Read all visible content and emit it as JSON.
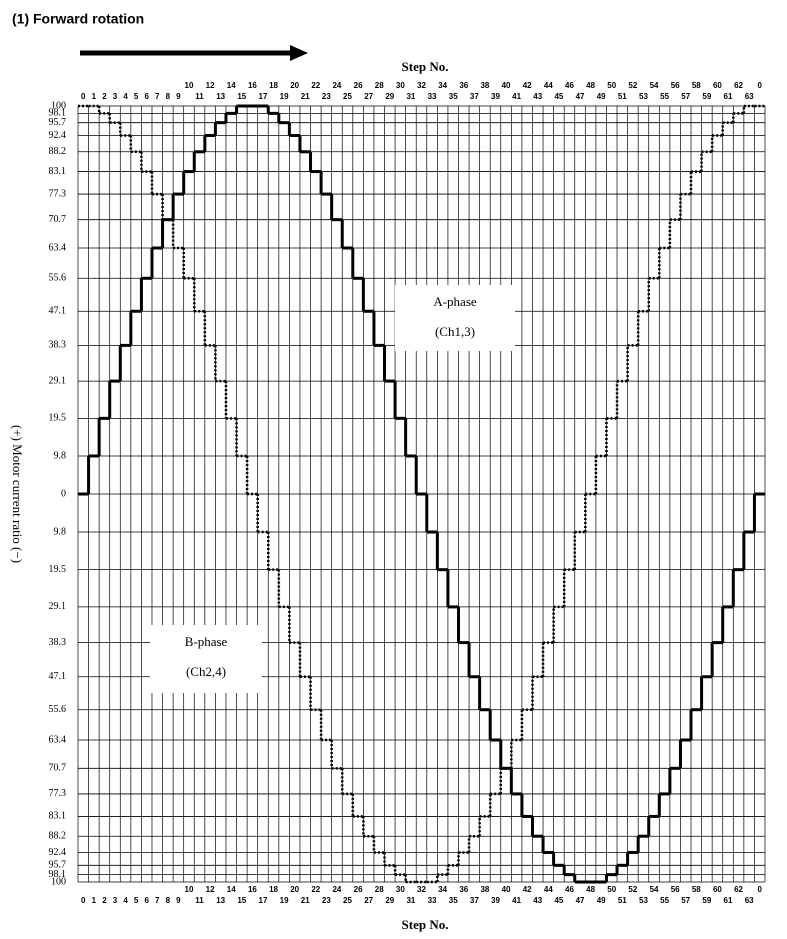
{
  "chart_data": {
    "type": "step",
    "title": "(1) Forward rotation",
    "xlabel": "Step No.",
    "ylabel": "(+) Motor current ratio (−)",
    "categories": [
      "0",
      "1",
      "2",
      "3",
      "4",
      "5",
      "6",
      "7",
      "8",
      "9",
      "10",
      "11",
      "12",
      "13",
      "14",
      "15",
      "16",
      "17",
      "18",
      "19",
      "20",
      "21",
      "22",
      "23",
      "24",
      "25",
      "26",
      "27",
      "28",
      "29",
      "30",
      "31",
      "32",
      "33",
      "34",
      "35",
      "36",
      "37",
      "38",
      "39",
      "40",
      "41",
      "42",
      "43",
      "44",
      "45",
      "46",
      "47",
      "48",
      "49",
      "50",
      "51",
      "52",
      "53",
      "54",
      "55",
      "56",
      "57",
      "58",
      "59",
      "60",
      "61",
      "62",
      "63",
      "0"
    ],
    "series": [
      {
        "name": "A-phase",
        "sub": "(Ch1,3)",
        "color": "#000000",
        "style": "solid",
        "values": [
          0,
          9.8,
          19.5,
          29.1,
          38.3,
          47.1,
          55.6,
          63.4,
          70.7,
          77.3,
          83.1,
          88.2,
          92.4,
          95.7,
          98.1,
          100,
          100,
          100,
          98.1,
          95.7,
          92.4,
          88.2,
          83.1,
          77.3,
          70.7,
          63.4,
          55.6,
          47.1,
          38.3,
          29.1,
          19.5,
          9.8,
          0,
          -9.8,
          -19.5,
          -29.1,
          -38.3,
          -47.1,
          -55.6,
          -63.4,
          -70.7,
          -77.3,
          -83.1,
          -88.2,
          -92.4,
          -95.7,
          -98.1,
          -100,
          -100,
          -100,
          -98.1,
          -95.7,
          -92.4,
          -88.2,
          -83.1,
          -77.3,
          -70.7,
          -63.4,
          -55.6,
          -47.1,
          -38.3,
          -29.1,
          -19.5,
          -9.8,
          0
        ]
      },
      {
        "name": "B-phase",
        "sub": "(Ch2,4)",
        "color": "#000000",
        "style": "dotted",
        "values": [
          100,
          100,
          98.1,
          95.7,
          92.4,
          88.2,
          83.1,
          77.3,
          70.7,
          63.4,
          55.6,
          47.1,
          38.3,
          29.1,
          19.5,
          9.8,
          0,
          -9.8,
          -19.5,
          -29.1,
          -38.3,
          -47.1,
          -55.6,
          -63.4,
          -70.7,
          -77.3,
          -83.1,
          -88.2,
          -92.4,
          -95.7,
          -98.1,
          -100,
          -100,
          -100,
          -98.1,
          -95.7,
          -92.4,
          -88.2,
          -83.1,
          -77.3,
          -70.7,
          -63.4,
          -55.6,
          -47.1,
          -38.3,
          -29.1,
          -19.5,
          -9.8,
          0,
          9.8,
          19.5,
          29.1,
          38.3,
          47.1,
          55.6,
          63.4,
          70.7,
          77.3,
          83.1,
          88.2,
          92.4,
          95.7,
          98.1,
          100,
          100
        ]
      }
    ],
    "ylim": [
      -100,
      100
    ],
    "yticks": [
      100,
      98.1,
      95.7,
      92.4,
      88.2,
      83.1,
      77.3,
      70.7,
      63.4,
      55.6,
      47.1,
      38.3,
      29.1,
      19.5,
      9.8,
      0,
      {
        "value": -9.8,
        "label": "9.8"
      },
      {
        "value": -19.5,
        "label": "19.5"
      },
      {
        "value": -29.1,
        "label": "29.1"
      },
      {
        "value": -38.3,
        "label": "38.3"
      },
      {
        "value": -47.1,
        "label": "47.1"
      },
      {
        "value": -55.6,
        "label": "55.6"
      },
      {
        "value": -63.4,
        "label": "63.4"
      },
      {
        "value": -70.7,
        "label": "70.7"
      },
      {
        "value": -77.3,
        "label": "77.3"
      },
      {
        "value": -83.1,
        "label": "83.1"
      },
      {
        "value": -88.2,
        "label": "88.2"
      },
      {
        "value": -92.4,
        "label": "92.4"
      },
      {
        "value": -95.7,
        "label": "95.7"
      },
      {
        "value": -98.1,
        "label": "98.1"
      },
      {
        "value": -100,
        "label": "100"
      }
    ],
    "grid": true
  }
}
